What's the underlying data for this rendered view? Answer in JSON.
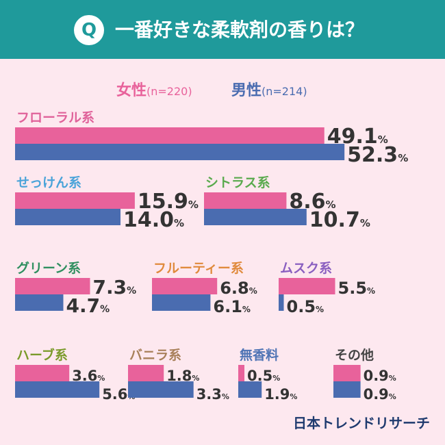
{
  "header": {
    "q_mark": "Q",
    "title": "一番好きな柔軟剤の香りは？"
  },
  "legend": {
    "female": {
      "label": "女性",
      "n": "(n=220)"
    },
    "male": {
      "label": "男性",
      "n": "(n=214)"
    }
  },
  "brand": "日本トレンドリサーチ",
  "colors": {
    "female": "#e8629b",
    "male": "#4a6cb0",
    "header_bg": "#1f9a9b",
    "page_bg": "#fde8ef",
    "value_text": "#333333"
  },
  "chart_data": {
    "type": "bar",
    "title": "一番好きな柔軟剤の香りは？",
    "unit": "%",
    "series_names": [
      "女性(n=220)",
      "男性(n=214)"
    ],
    "categories": [
      {
        "name": "フローラル系",
        "female": 49.1,
        "male": 52.3,
        "color": "#e0629a"
      },
      {
        "name": "せっけん系",
        "female": 15.9,
        "male": 14.0,
        "color": "#4aa3d9"
      },
      {
        "name": "シトラス系",
        "female": 8.6,
        "male": 10.7,
        "color": "#5aaa4e"
      },
      {
        "name": "グリーン系",
        "female": 7.3,
        "male": 4.7,
        "color": "#2f8f5f"
      },
      {
        "name": "フルーティー系",
        "female": 6.8,
        "male": 6.1,
        "color": "#e08a3c"
      },
      {
        "name": "ムスク系",
        "female": 5.5,
        "male": 0.5,
        "color": "#8a5fc0"
      },
      {
        "name": "ハーブ系",
        "female": 3.6,
        "male": 5.6,
        "color": "#7a9a2a"
      },
      {
        "name": "バニラ系",
        "female": 1.8,
        "male": 3.3,
        "color": "#a8805a"
      },
      {
        "name": "無香料",
        "female": 0.5,
        "male": 1.9,
        "color": "#4f74b5"
      },
      {
        "name": "その他",
        "female": 0.9,
        "male": 0.9,
        "color": "#444444"
      }
    ]
  }
}
